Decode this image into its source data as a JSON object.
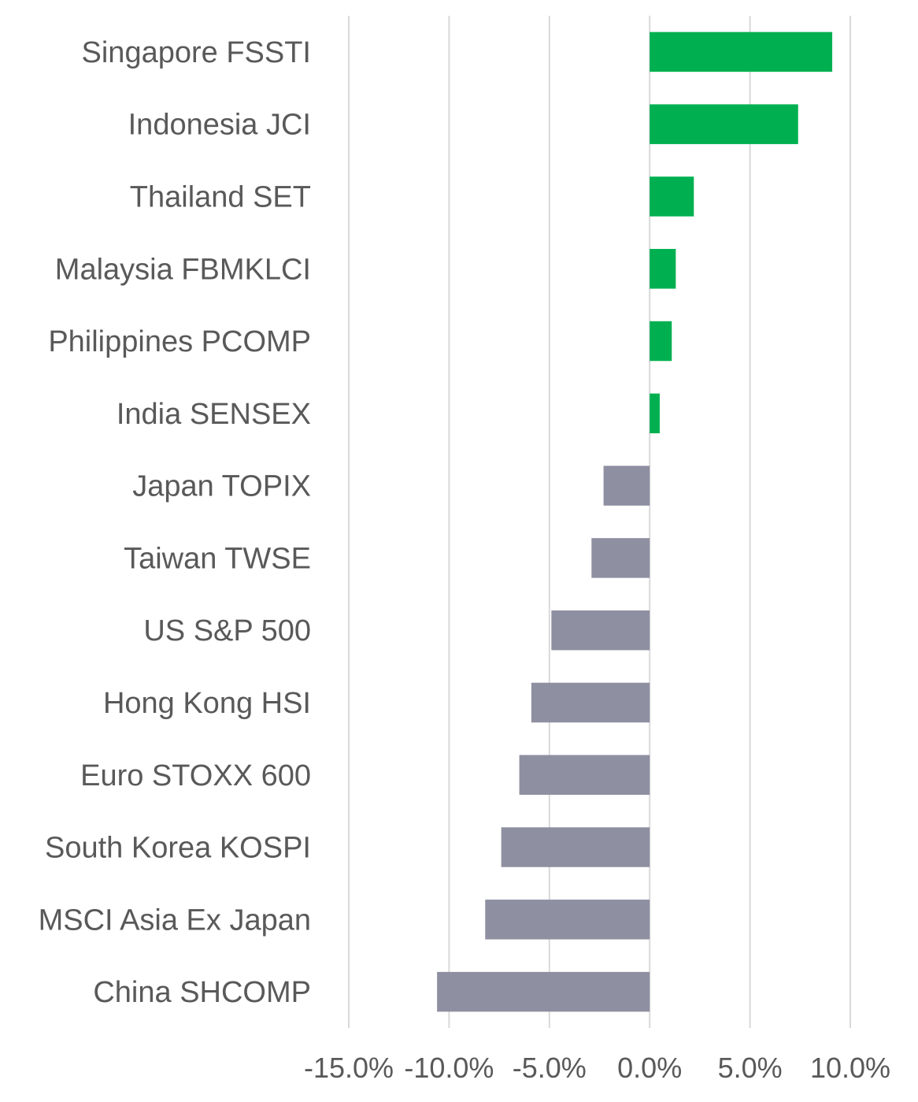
{
  "chart_data": {
    "type": "bar",
    "orientation": "horizontal",
    "categories": [
      "Singapore FSSTI",
      "Indonesia JCI",
      "Thailand SET",
      "Malaysia FBMKLCI",
      "Philippines PCOMP",
      "India SENSEX",
      "Japan TOPIX",
      "Taiwan TWSE",
      "US S&P 500",
      "Hong Kong HSI",
      "Euro STOXX 600",
      "South Korea KOSPI",
      "MSCI Asia Ex Japan",
      "China SHCOMP"
    ],
    "values": [
      9.1,
      7.4,
      2.2,
      1.3,
      1.1,
      0.5,
      -2.3,
      -2.9,
      -4.9,
      -5.9,
      -6.5,
      -7.4,
      -8.2,
      -10.6
    ],
    "xlim": [
      -15,
      10
    ],
    "xticks": [
      -15,
      -10,
      -5,
      0,
      5,
      10
    ],
    "xtick_labels": [
      "-15.0%",
      "-10.0%",
      "-5.0%",
      "0.0%",
      "5.0%",
      "10.0%"
    ],
    "grid": "vertical",
    "legend": "none",
    "colors": {
      "positive": "#00b050",
      "negative": "#8e8fa1"
    },
    "title": "",
    "xlabel": "",
    "ylabel": ""
  }
}
